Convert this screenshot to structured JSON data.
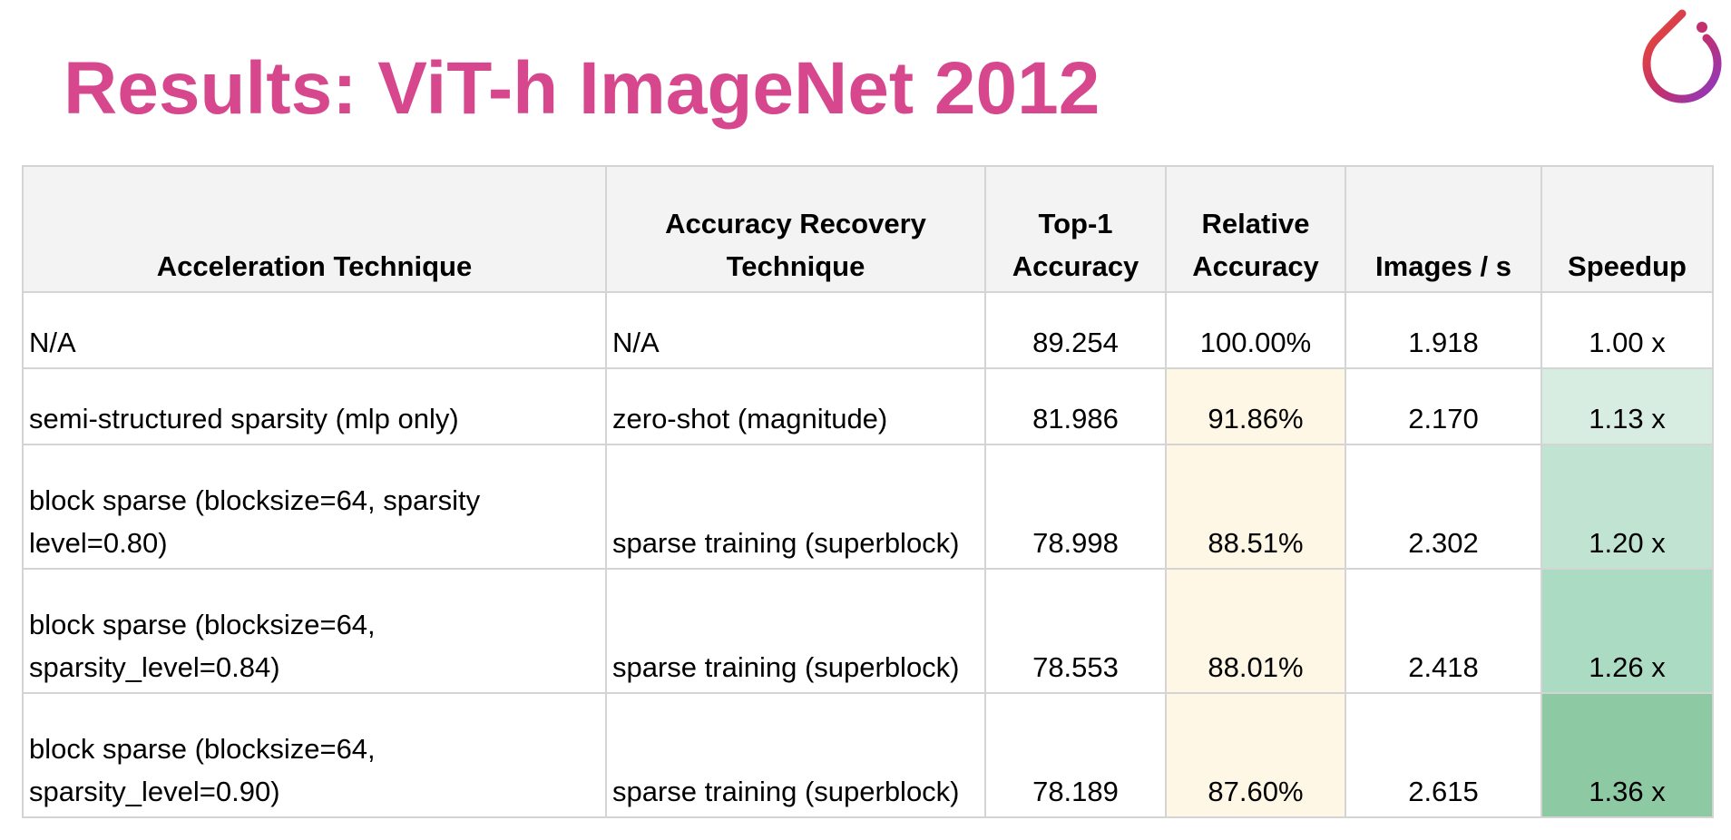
{
  "title": "Results: ViT-h ImageNet 2012",
  "logo": {
    "icon": "pytorch-flame-icon",
    "colors": [
      "#ee4c2c",
      "#c2306e",
      "#8a38c7"
    ]
  },
  "colors": {
    "title": "#d6478d",
    "header_bg": "#f3f3f3",
    "border": "#d4d4d4",
    "relative_accuracy_highlight": "#fff7e5",
    "speedup_scale": [
      "#d8ede2",
      "#c1e3d2",
      "#acdbc3",
      "#8dc9a3"
    ]
  },
  "table": {
    "columns": [
      "Acceleration Technique",
      "Accuracy Recovery Technique",
      "Top-1 Accuracy",
      "Relative Accuracy",
      "Images / s",
      "Speedup"
    ],
    "rows": [
      {
        "acceleration": "N/A",
        "recovery": "N/A",
        "top1": "89.254",
        "relative": "100.00%",
        "images_per_s": "1.918",
        "speedup": "1.00 x",
        "relative_bg": "#ffffff",
        "speedup_bg": "#ffffff"
      },
      {
        "acceleration": "semi-structured sparsity (mlp only)",
        "recovery": "zero-shot (magnitude)",
        "top1": "81.986",
        "relative": "91.86%",
        "images_per_s": "2.170",
        "speedup": "1.13 x",
        "relative_bg": "#fff7e5",
        "speedup_bg": "#d8ede2"
      },
      {
        "acceleration": "block sparse (blocksize=64, sparsity level=0.80)",
        "recovery": "sparse training (superblock)",
        "top1": "78.998",
        "relative": "88.51%",
        "images_per_s": "2.302",
        "speedup": "1.20 x",
        "relative_bg": "#fff7e5",
        "speedup_bg": "#c1e3d2"
      },
      {
        "acceleration": "block sparse (blocksize=64, sparsity_level=0.84)",
        "recovery": "sparse training (superblock)",
        "top1": "78.553",
        "relative": "88.01%",
        "images_per_s": "2.418",
        "speedup": "1.26 x",
        "relative_bg": "#fff7e5",
        "speedup_bg": "#acdbc3"
      },
      {
        "acceleration": "block sparse (blocksize=64, sparsity_level=0.90)",
        "recovery": "sparse training (superblock)",
        "top1": "78.189",
        "relative": "87.60%",
        "images_per_s": "2.615",
        "speedup": "1.36 x",
        "relative_bg": "#fff7e5",
        "speedup_bg": "#8dc9a3"
      }
    ]
  }
}
